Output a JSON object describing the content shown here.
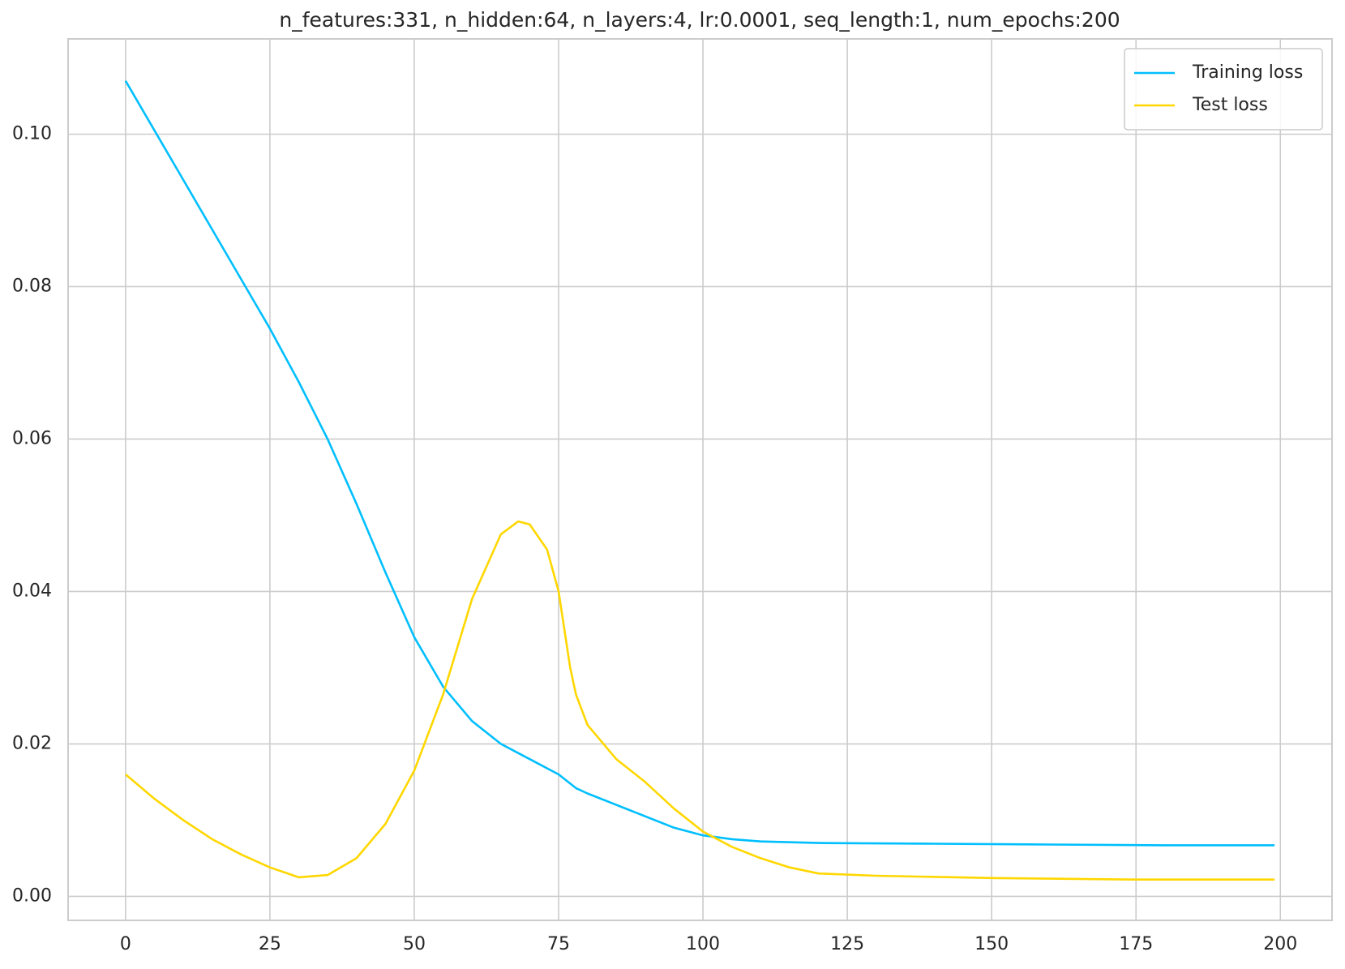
{
  "chart_data": {
    "type": "line",
    "title": "n_features:331, n_hidden:64, n_layers:4, lr:0.0001, seq_length:1, num_epochs:200",
    "xlim": [
      -9.95,
      208.95
    ],
    "ylim": [
      -0.00315,
      0.1125
    ],
    "xticks": [
      0,
      25,
      50,
      75,
      100,
      125,
      150,
      175,
      200
    ],
    "yticks": [
      {
        "value": 0,
        "label": "0.00"
      },
      {
        "value": 0.02,
        "label": "0.02"
      },
      {
        "value": 0.04,
        "label": "0.04"
      },
      {
        "value": 0.06,
        "label": "0.06"
      },
      {
        "value": 0.08,
        "label": "0.08"
      },
      {
        "value": 0.1,
        "label": "0.10"
      }
    ],
    "grid": true,
    "legend": "upper right",
    "series": [
      {
        "name": "Training loss",
        "color": "#00bfff",
        "x": [
          0,
          5,
          10,
          15,
          20,
          25,
          30,
          35,
          40,
          45,
          50,
          55,
          60,
          65,
          70,
          75,
          78,
          80,
          85,
          90,
          95,
          100,
          105,
          110,
          120,
          140,
          160,
          180,
          199
        ],
        "values": [
          0.107,
          0.1005,
          0.094,
          0.0875,
          0.081,
          0.0745,
          0.0675,
          0.06,
          0.0515,
          0.0425,
          0.034,
          0.0275,
          0.023,
          0.02,
          0.018,
          0.016,
          0.0142,
          0.0135,
          0.012,
          0.0105,
          0.009,
          0.008,
          0.0075,
          0.0072,
          0.007,
          0.0069,
          0.0068,
          0.0067,
          0.0067
        ]
      },
      {
        "name": "Test loss",
        "color": "#ffd700",
        "x": [
          0,
          5,
          10,
          15,
          20,
          25,
          30,
          35,
          40,
          45,
          50,
          55,
          60,
          65,
          68,
          70,
          73,
          75,
          77,
          78,
          80,
          85,
          90,
          95,
          100,
          105,
          110,
          115,
          120,
          130,
          150,
          175,
          199
        ],
        "values": [
          0.016,
          0.0128,
          0.01,
          0.0075,
          0.0055,
          0.0038,
          0.0025,
          0.0028,
          0.005,
          0.0095,
          0.0165,
          0.0265,
          0.039,
          0.0475,
          0.0492,
          0.0488,
          0.0455,
          0.04,
          0.03,
          0.0265,
          0.0225,
          0.018,
          0.015,
          0.0115,
          0.0085,
          0.0065,
          0.005,
          0.0038,
          0.003,
          0.0027,
          0.0024,
          0.0022,
          0.0022
        ]
      }
    ]
  }
}
